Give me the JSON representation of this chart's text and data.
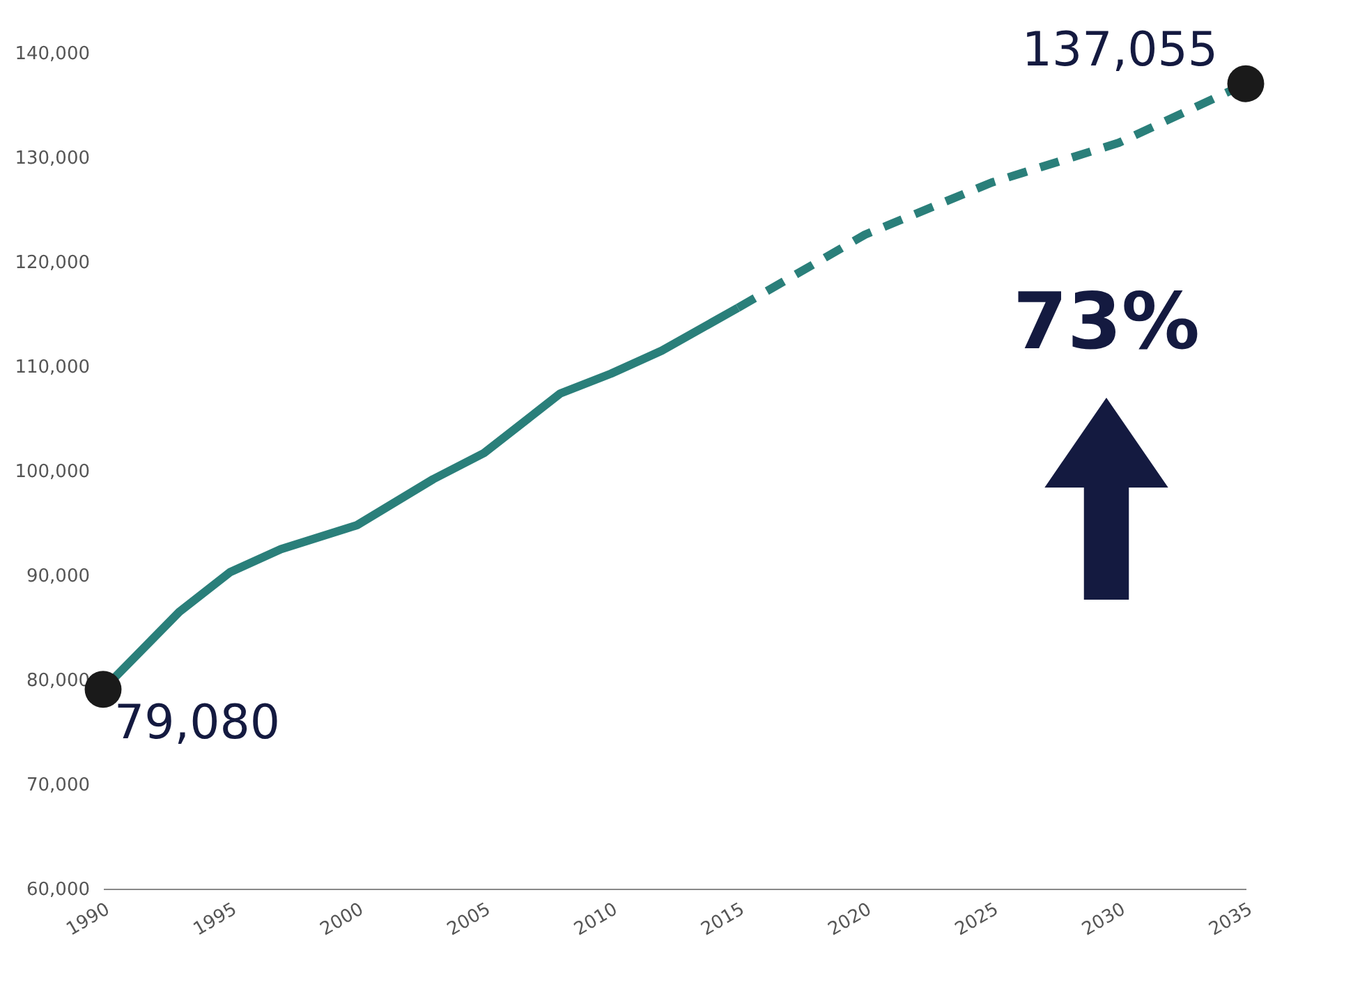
{
  "chart_data": {
    "type": "line",
    "x": [
      1990,
      1993,
      1995,
      1997,
      2000,
      2003,
      2005,
      2008,
      2010,
      2012,
      2015
    ],
    "series": [
      {
        "color": "#2a7f7a",
        "line_style": "solid",
        "values": [
          79080,
          86500,
          90300,
          92500,
          94800,
          99200,
          101700,
          107400,
          109300,
          111500,
          115600
        ]
      },
      {
        "color": "#2a7f7a",
        "line_style": "dashed",
        "x": [
          2015,
          2020,
          2025,
          2030,
          2035
        ],
        "values": [
          115600,
          122600,
          127600,
          131400,
          137055
        ]
      },
      {
        "type": "scatter",
        "color": "#1a1a1a",
        "marker": "circle",
        "x": [
          1990,
          2035
        ],
        "values": [
          79080,
          137055
        ]
      }
    ],
    "annotations": [
      {
        "text": "79,080",
        "x": 1990,
        "y": 79080
      },
      {
        "text": "137,055",
        "x": 2035,
        "y": 137055
      },
      "73%"
    ],
    "xlim": [
      1990,
      2035
    ],
    "xticks": [
      1990,
      1995,
      2000,
      2005,
      2010,
      2015,
      2020,
      2025,
      2030,
      2035
    ],
    "ylim": [
      60000,
      140000
    ],
    "yticks": [
      {
        "value": 60000,
        "label": "60,000"
      },
      {
        "value": 70000,
        "label": "70,000"
      },
      {
        "value": 80000,
        "label": "80,000"
      },
      {
        "value": 90000,
        "label": "90,000"
      },
      {
        "value": 100000,
        "label": "100,000"
      },
      {
        "value": 110000,
        "label": "110,000"
      },
      {
        "value": 120000,
        "label": "120,000"
      },
      {
        "value": 130000,
        "label": "130,000"
      },
      {
        "value": 140000,
        "label": "140,000"
      }
    ],
    "grid": false
  }
}
